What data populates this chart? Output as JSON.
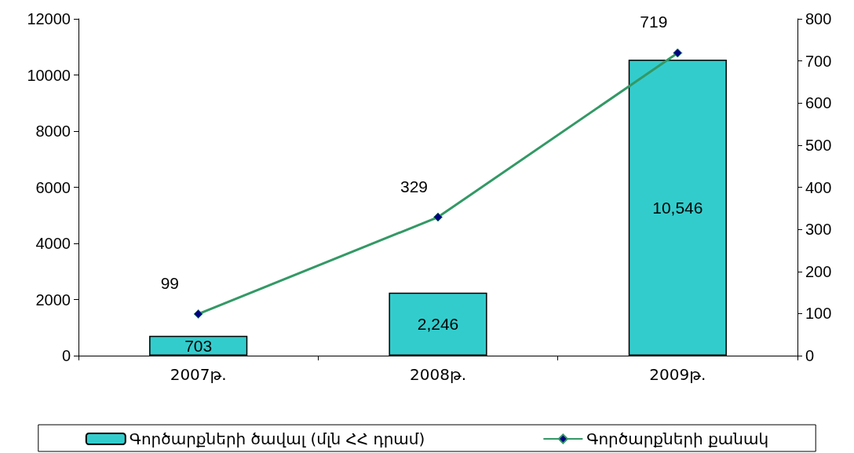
{
  "chart_data": {
    "type": "bar",
    "categories": [
      "2007թ.",
      "2008թ.",
      "2009թ."
    ],
    "series": [
      {
        "name": "Գործարքների ծավալ (մլն ՀՀ դրամ)",
        "color": "#33cccc",
        "values": [
          703,
          2246,
          10546
        ],
        "value_labels": [
          "703",
          "2,246",
          "10,546"
        ]
      },
      {
        "name": "Գործարքների քանակ",
        "type": "line",
        "axis": "y2",
        "color": "#339966",
        "values": [
          99,
          329,
          719
        ],
        "data_labels": true
      }
    ],
    "ylim": [
      0,
      12000
    ],
    "yticks": [
      0,
      2000,
      4000,
      6000,
      8000,
      10000,
      12000
    ],
    "y2lim": [
      0,
      800
    ],
    "y2ticks": [
      0,
      100,
      200,
      300,
      400,
      500,
      600,
      700,
      800
    ],
    "grid": false,
    "legend": "bottom",
    "marker": "diamond",
    "line_style": "solid"
  }
}
